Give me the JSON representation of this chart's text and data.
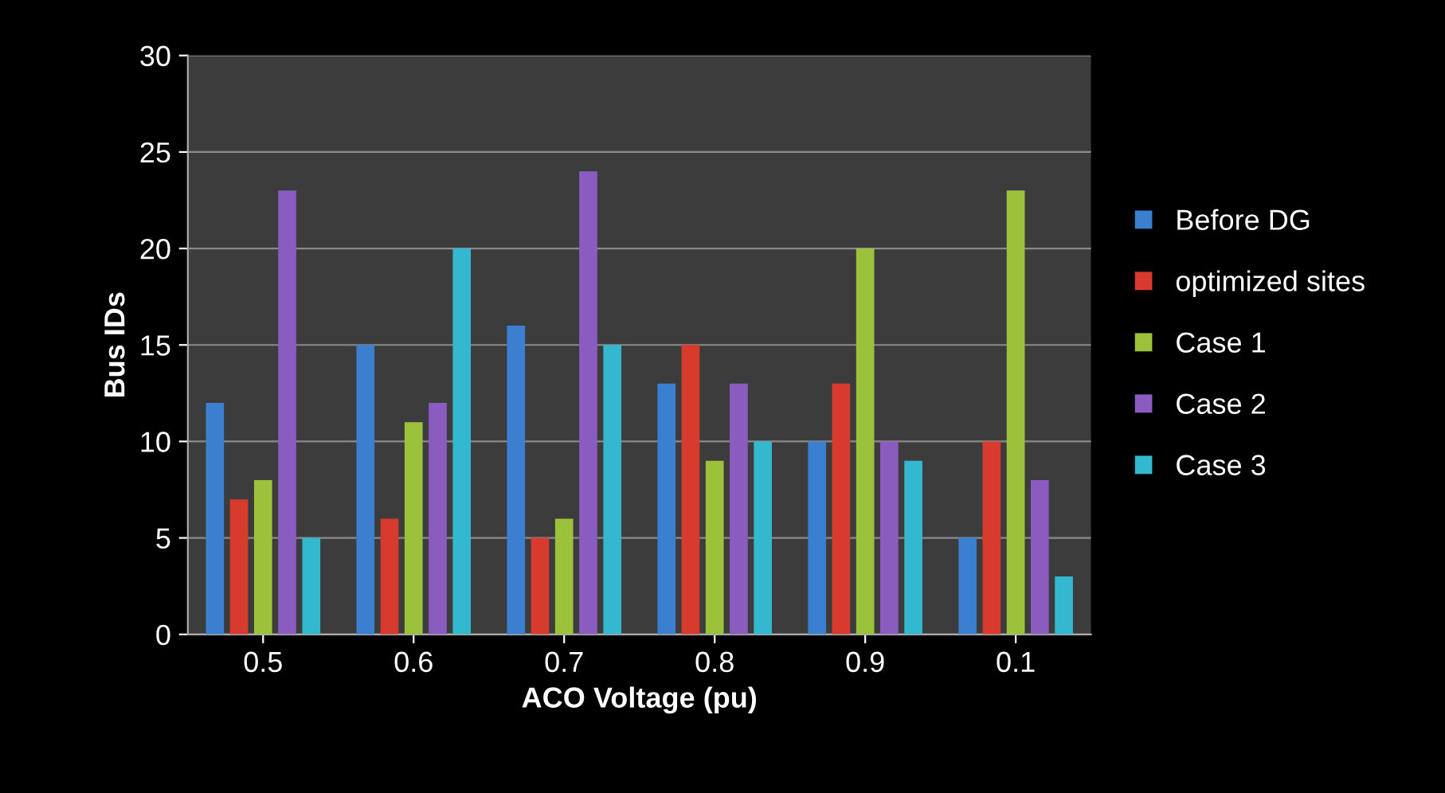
{
  "chart_data": {
    "type": "bar",
    "xlabel": "ACO Voltage (pu)",
    "ylabel": "Bus IDs",
    "categories": [
      "0.5",
      "0.6",
      "0.7",
      "0.8",
      "0.9",
      "0.1"
    ],
    "series": [
      {
        "name": "Before DG",
        "color": "#3a7fd0",
        "values": [
          12,
          15,
          16,
          13,
          10,
          5
        ]
      },
      {
        "name": "optimized sites",
        "color": "#d93a2e",
        "values": [
          7,
          6,
          5,
          15,
          13,
          10
        ]
      },
      {
        "name": "Case 1",
        "color": "#9cc23c",
        "values": [
          8,
          11,
          6,
          9,
          20,
          23
        ]
      },
      {
        "name": "Case 2",
        "color": "#8a5cc0",
        "values": [
          23,
          12,
          24,
          13,
          10,
          8
        ]
      },
      {
        "name": "Case 3",
        "color": "#34b8cf",
        "values": [
          5,
          20,
          15,
          10,
          9,
          3
        ]
      }
    ],
    "ylim": [
      0,
      30
    ],
    "yticks": [
      0,
      5,
      10,
      15,
      20,
      25,
      30
    ],
    "grid": "y",
    "legend": "right"
  }
}
